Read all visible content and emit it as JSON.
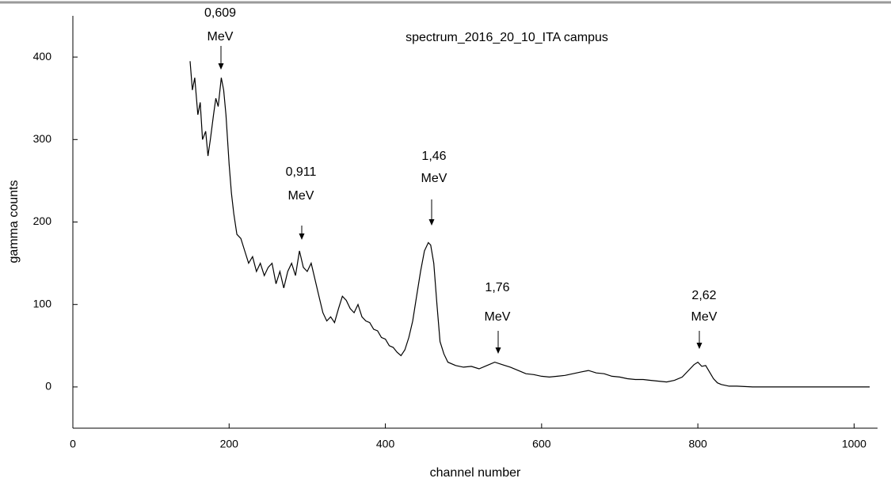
{
  "chart_data": {
    "type": "line",
    "title": "spectrum_2016_20_10_ITA campus",
    "x_label": "channel number",
    "y_label": "gamma counts",
    "x": [
      150,
      153,
      156,
      160,
      163,
      166,
      170,
      173,
      176,
      180,
      183,
      186,
      190,
      193,
      196,
      200,
      203,
      206,
      210,
      215,
      220,
      225,
      230,
      235,
      240,
      245,
      250,
      255,
      260,
      265,
      270,
      275,
      280,
      285,
      290,
      295,
      300,
      305,
      310,
      315,
      320,
      325,
      330,
      335,
      340,
      345,
      350,
      355,
      360,
      365,
      370,
      375,
      380,
      385,
      390,
      395,
      400,
      405,
      410,
      415,
      420,
      425,
      430,
      435,
      440,
      445,
      450,
      455,
      458,
      462,
      466,
      470,
      475,
      480,
      490,
      500,
      510,
      520,
      530,
      540,
      550,
      560,
      570,
      580,
      590,
      600,
      610,
      620,
      630,
      640,
      650,
      660,
      670,
      680,
      690,
      700,
      710,
      720,
      730,
      740,
      750,
      760,
      770,
      780,
      790,
      795,
      800,
      805,
      810,
      815,
      820,
      825,
      830,
      840,
      850,
      870,
      900,
      930,
      960,
      990,
      1020
    ],
    "values": [
      395,
      360,
      375,
      330,
      345,
      300,
      310,
      280,
      300,
      330,
      350,
      340,
      375,
      360,
      330,
      270,
      235,
      210,
      185,
      180,
      165,
      150,
      158,
      140,
      150,
      135,
      145,
      150,
      125,
      140,
      120,
      140,
      150,
      135,
      165,
      145,
      140,
      150,
      130,
      110,
      90,
      80,
      85,
      78,
      95,
      110,
      105,
      95,
      90,
      100,
      85,
      80,
      78,
      70,
      68,
      60,
      58,
      50,
      48,
      42,
      38,
      45,
      60,
      80,
      110,
      140,
      165,
      175,
      172,
      150,
      100,
      55,
      40,
      30,
      26,
      24,
      25,
      22,
      26,
      30,
      27,
      24,
      20,
      16,
      15,
      13,
      12,
      13,
      14,
      16,
      18,
      20,
      17,
      16,
      13,
      12,
      10,
      9,
      9,
      8,
      7,
      6,
      8,
      12,
      22,
      27,
      30,
      25,
      26,
      18,
      10,
      5,
      3,
      1,
      1,
      0,
      0,
      0,
      0,
      0,
      0
    ],
    "color": "#000000",
    "xlim": [
      0,
      1030
    ],
    "ylim": [
      -50,
      450
    ],
    "xticks": [
      0,
      200,
      400,
      600,
      800,
      1000
    ],
    "yticks": [
      0,
      100,
      200,
      300,
      400
    ],
    "annotations": [
      [
        "0,609",
        "MeV"
      ],
      [
        "0,911",
        "MeV"
      ],
      [
        "1,46",
        "MeV"
      ],
      [
        "1,76",
        "MeV"
      ],
      [
        "2,62",
        "MeV"
      ]
    ]
  }
}
